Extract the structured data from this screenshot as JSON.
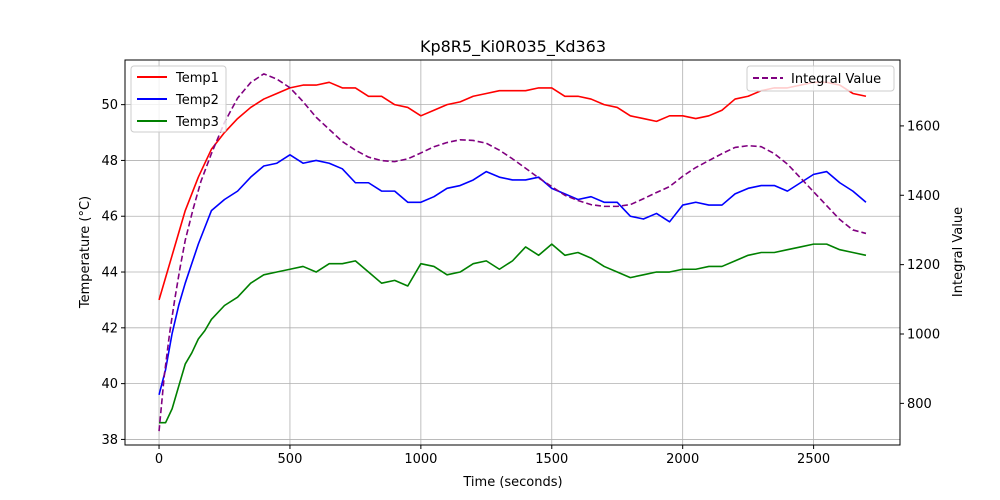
{
  "chart_data": {
    "type": "line",
    "title": "Kp8R5_Ki0R035_Kd363",
    "xlabel": "Time (seconds)",
    "ylabel": "Temperature (°C)",
    "y2label": "Integral Value",
    "xlim": [
      -130,
      2830
    ],
    "ylim": [
      37.8,
      51.6
    ],
    "y2lim": [
      680,
      1790
    ],
    "xticks": [
      0,
      500,
      1000,
      1500,
      2000,
      2500
    ],
    "yticks": [
      38,
      40,
      42,
      44,
      46,
      48,
      50
    ],
    "y2ticks": [
      800,
      1000,
      1200,
      1400,
      1600
    ],
    "grid": true,
    "legend_left_placement": "top-left",
    "legend_right_placement": "top-right",
    "colors": {
      "temp1": "#ff0000",
      "temp2": "#0000ff",
      "temp3": "#008000",
      "integral": "#800080"
    },
    "series": [
      {
        "name": "Temp1",
        "axis": "left",
        "style": "solid",
        "color": "#ff0000",
        "x": [
          0,
          25,
          50,
          75,
          100,
          125,
          150,
          175,
          200,
          250,
          300,
          350,
          400,
          450,
          500,
          550,
          600,
          650,
          700,
          750,
          800,
          850,
          900,
          950,
          1000,
          1050,
          1100,
          1150,
          1200,
          1250,
          1300,
          1350,
          1400,
          1450,
          1500,
          1550,
          1600,
          1650,
          1700,
          1750,
          1800,
          1850,
          1900,
          1950,
          2000,
          2050,
          2100,
          2150,
          2200,
          2250,
          2300,
          2350,
          2400,
          2450,
          2500,
          2550,
          2600,
          2650,
          2700
        ],
        "values": [
          43.0,
          43.8,
          44.6,
          45.4,
          46.2,
          46.8,
          47.4,
          47.9,
          48.4,
          49.0,
          49.5,
          49.9,
          50.2,
          50.4,
          50.6,
          50.7,
          50.7,
          50.8,
          50.6,
          50.6,
          50.3,
          50.3,
          50.0,
          49.9,
          49.6,
          49.8,
          50.0,
          50.1,
          50.3,
          50.4,
          50.5,
          50.5,
          50.5,
          50.6,
          50.6,
          50.3,
          50.3,
          50.2,
          50.0,
          49.9,
          49.6,
          49.5,
          49.4,
          49.6,
          49.6,
          49.5,
          49.6,
          49.8,
          50.2,
          50.3,
          50.5,
          50.6,
          50.6,
          50.7,
          50.8,
          50.8,
          50.7,
          50.4,
          50.3
        ]
      },
      {
        "name": "Temp2",
        "axis": "left",
        "style": "solid",
        "color": "#0000ff",
        "x": [
          0,
          25,
          50,
          75,
          100,
          125,
          150,
          175,
          200,
          250,
          300,
          350,
          400,
          450,
          500,
          550,
          600,
          650,
          700,
          750,
          800,
          850,
          900,
          950,
          1000,
          1050,
          1100,
          1150,
          1200,
          1250,
          1300,
          1350,
          1400,
          1450,
          1500,
          1550,
          1600,
          1650,
          1700,
          1750,
          1800,
          1850,
          1900,
          1950,
          2000,
          2050,
          2100,
          2150,
          2200,
          2250,
          2300,
          2350,
          2400,
          2450,
          2500,
          2550,
          2600,
          2650,
          2700
        ],
        "values": [
          39.6,
          40.5,
          41.8,
          42.8,
          43.6,
          44.3,
          45.0,
          45.6,
          46.2,
          46.6,
          46.9,
          47.4,
          47.8,
          47.9,
          48.2,
          47.9,
          48.0,
          47.9,
          47.7,
          47.2,
          47.2,
          46.9,
          46.9,
          46.5,
          46.5,
          46.7,
          47.0,
          47.1,
          47.3,
          47.6,
          47.4,
          47.3,
          47.3,
          47.4,
          47.0,
          46.8,
          46.6,
          46.7,
          46.5,
          46.5,
          46.0,
          45.9,
          46.1,
          45.8,
          46.4,
          46.5,
          46.4,
          46.4,
          46.8,
          47.0,
          47.1,
          47.1,
          46.9,
          47.2,
          47.5,
          47.6,
          47.2,
          46.9,
          46.5
        ]
      },
      {
        "name": "Temp3",
        "axis": "left",
        "style": "solid",
        "color": "#008000",
        "x": [
          0,
          25,
          50,
          75,
          100,
          125,
          150,
          175,
          200,
          250,
          300,
          350,
          400,
          450,
          500,
          550,
          600,
          650,
          700,
          750,
          800,
          850,
          900,
          950,
          1000,
          1050,
          1100,
          1150,
          1200,
          1250,
          1300,
          1350,
          1400,
          1450,
          1500,
          1550,
          1600,
          1650,
          1700,
          1750,
          1800,
          1850,
          1900,
          1950,
          2000,
          2050,
          2100,
          2150,
          2200,
          2250,
          2300,
          2350,
          2400,
          2450,
          2500,
          2550,
          2600,
          2650,
          2700
        ],
        "values": [
          38.6,
          38.6,
          39.1,
          39.9,
          40.7,
          41.1,
          41.6,
          41.9,
          42.3,
          42.8,
          43.1,
          43.6,
          43.9,
          44.0,
          44.1,
          44.2,
          44.0,
          44.3,
          44.3,
          44.4,
          44.0,
          43.6,
          43.7,
          43.5,
          44.3,
          44.2,
          43.9,
          44.0,
          44.3,
          44.4,
          44.1,
          44.4,
          44.9,
          44.6,
          45.0,
          44.6,
          44.7,
          44.5,
          44.2,
          44.0,
          43.8,
          43.9,
          44.0,
          44.0,
          44.1,
          44.1,
          44.2,
          44.2,
          44.4,
          44.6,
          44.7,
          44.7,
          44.8,
          44.9,
          45.0,
          45.0,
          44.8,
          44.7,
          44.6
        ]
      },
      {
        "name": "Integral Value",
        "axis": "right",
        "style": "dashed",
        "color": "#800080",
        "x": [
          0,
          20,
          40,
          60,
          80,
          100,
          130,
          160,
          200,
          250,
          300,
          350,
          400,
          450,
          500,
          550,
          600,
          650,
          700,
          750,
          800,
          850,
          900,
          950,
          1000,
          1050,
          1100,
          1150,
          1200,
          1250,
          1300,
          1350,
          1400,
          1450,
          1500,
          1550,
          1600,
          1650,
          1700,
          1750,
          1800,
          1850,
          1900,
          1950,
          2000,
          2050,
          2100,
          2150,
          2200,
          2250,
          2300,
          2350,
          2400,
          2450,
          2500,
          2550,
          2600,
          2650,
          2700
        ],
        "values": [
          720,
          880,
          1000,
          1100,
          1190,
          1270,
          1360,
          1440,
          1520,
          1610,
          1680,
          1725,
          1750,
          1735,
          1710,
          1670,
          1625,
          1590,
          1555,
          1530,
          1510,
          1500,
          1497,
          1505,
          1522,
          1540,
          1552,
          1560,
          1558,
          1550,
          1530,
          1505,
          1478,
          1450,
          1425,
          1400,
          1385,
          1373,
          1368,
          1368,
          1373,
          1390,
          1408,
          1425,
          1455,
          1480,
          1500,
          1520,
          1538,
          1543,
          1540,
          1520,
          1490,
          1450,
          1410,
          1370,
          1330,
          1300,
          1290
        ]
      }
    ]
  }
}
